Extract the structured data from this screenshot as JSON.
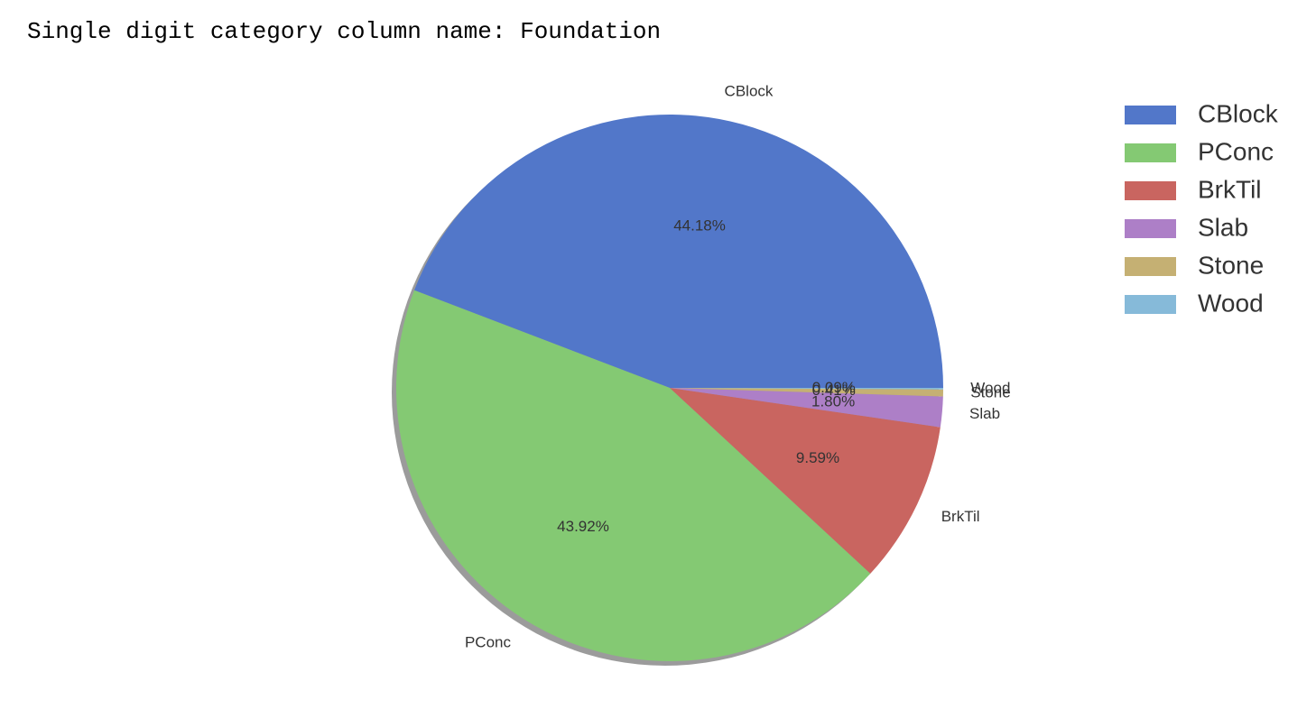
{
  "output": {
    "text": "Single digit category column name: Foundation"
  },
  "chart_data": {
    "type": "pie",
    "title": "",
    "categories": [
      "CBlock",
      "PConc",
      "BrkTil",
      "Slab",
      "Stone",
      "Wood"
    ],
    "values": [
      44.18,
      43.92,
      9.59,
      1.8,
      0.41,
      0.09
    ],
    "value_labels": [
      "44.18%",
      "43.92%",
      "9.59%",
      "1.80%",
      "0.41%",
      "0.09%"
    ],
    "colors": [
      "#5277c9",
      "#84c973",
      "#c96560",
      "#ad7fc7",
      "#c5b073",
      "#86bad9"
    ],
    "start_angle_deg": 0,
    "direction": "counterclockwise",
    "shadow": true,
    "legend": {
      "placement": "upper-right",
      "entries": [
        "CBlock",
        "PConc",
        "BrkTil",
        "Slab",
        "Stone",
        "Wood"
      ]
    }
  }
}
